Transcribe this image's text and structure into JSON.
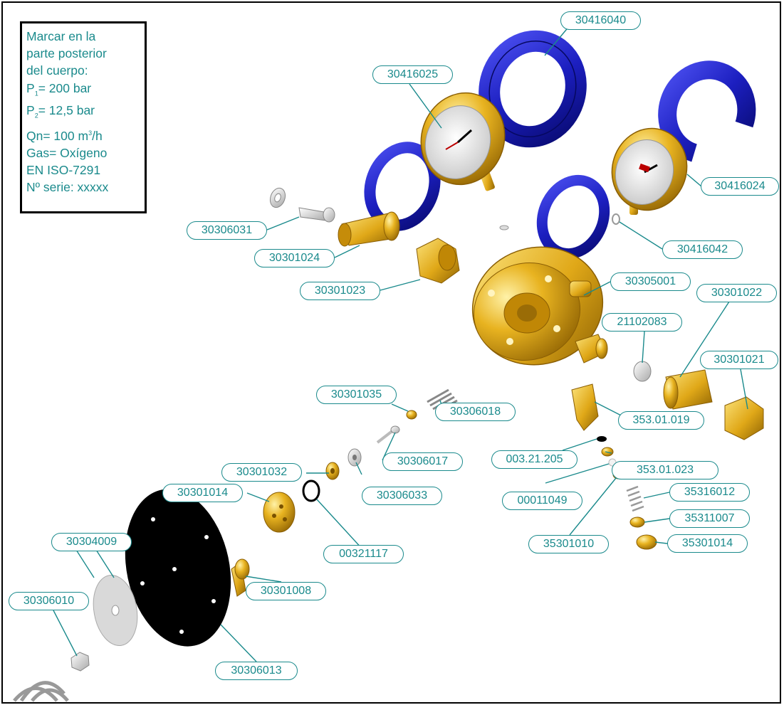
{
  "notes": {
    "line1": "Marcar en la",
    "line2": "parte posterior",
    "line3": "del cuerpo:",
    "p1_symbol": "P",
    "p1_sub": "1",
    "p1_value": "= 200 bar",
    "p2_symbol": "P",
    "p2_sub": "2",
    "p2_value": "= 12,5 bar",
    "qn_prefix": "Qn= 100 m",
    "qn_sup": "3",
    "qn_suffix": "/h",
    "gas": "Gas= Oxígeno",
    "standard": "EN ISO-7291",
    "serial": "Nº serie: xxxxx"
  },
  "colors": {
    "callout": "#1a8a8c",
    "brass": "#e8b320",
    "brass_dark": "#a8780a",
    "cover_blue": "#1c1fc0",
    "cover_blue_dark": "#0b0d80",
    "diaphragm": "#000000",
    "steel": "#d8d8d8"
  },
  "labels": {
    "p30416040": "30416040",
    "p30416025": "30416025",
    "p30416024": "30416024",
    "p30416042": "30416042",
    "p30306031": "30306031",
    "p30301024": "30301024",
    "p30301023": "30301023",
    "p30305001": "30305001",
    "p30301022": "30301022",
    "p21102083": "21102083",
    "p30301021": "30301021",
    "p30301035": "30301035",
    "p30306018": "30306018",
    "p35301019": "353.01.019",
    "p30301032": "30301032",
    "p30306017": "30306017",
    "p00321205": "003.21.205",
    "p35301023": "353.01.023",
    "p30306033": "30306033",
    "p30301014": "30301014",
    "p00011049": "00011049",
    "p35316012": "35316012",
    "p35311007": "35311007",
    "p00321117": "00321117",
    "p35301010": "35301010",
    "p35301014": "35301014",
    "p30304009": "30304009",
    "p30301008": "30301008",
    "p30306010": "30306010",
    "p30306013": "30306013"
  }
}
